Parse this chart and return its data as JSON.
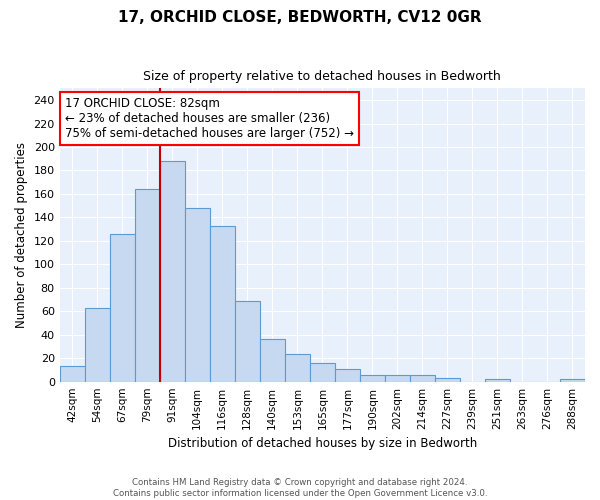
{
  "title1": "17, ORCHID CLOSE, BEDWORTH, CV12 0GR",
  "title2": "Size of property relative to detached houses in Bedworth",
  "xlabel": "Distribution of detached houses by size in Bedworth",
  "ylabel": "Number of detached properties",
  "bar_labels": [
    "42sqm",
    "54sqm",
    "67sqm",
    "79sqm",
    "91sqm",
    "104sqm",
    "116sqm",
    "128sqm",
    "140sqm",
    "153sqm",
    "165sqm",
    "177sqm",
    "190sqm",
    "202sqm",
    "214sqm",
    "227sqm",
    "239sqm",
    "251sqm",
    "263sqm",
    "276sqm",
    "288sqm"
  ],
  "bar_values": [
    13,
    63,
    126,
    164,
    188,
    148,
    133,
    69,
    36,
    24,
    16,
    11,
    6,
    6,
    6,
    3,
    0,
    2,
    0,
    0,
    2
  ],
  "bar_color": "#c6d9f0",
  "bar_edgecolor": "#5b9bd5",
  "vline_color": "#c00000",
  "annotation_title": "17 ORCHID CLOSE: 82sqm",
  "annotation_line2": "← 23% of detached houses are smaller (236)",
  "annotation_line3": "75% of semi-detached houses are larger (752) →",
  "ylim": [
    0,
    250
  ],
  "yticks": [
    0,
    20,
    40,
    60,
    80,
    100,
    120,
    140,
    160,
    180,
    200,
    220,
    240
  ],
  "footer": "Contains HM Land Registry data © Crown copyright and database right 2024.\nContains public sector information licensed under the Open Government Licence v3.0.",
  "bg_color": "#e8f0fb",
  "vline_bar_index": 3.5
}
